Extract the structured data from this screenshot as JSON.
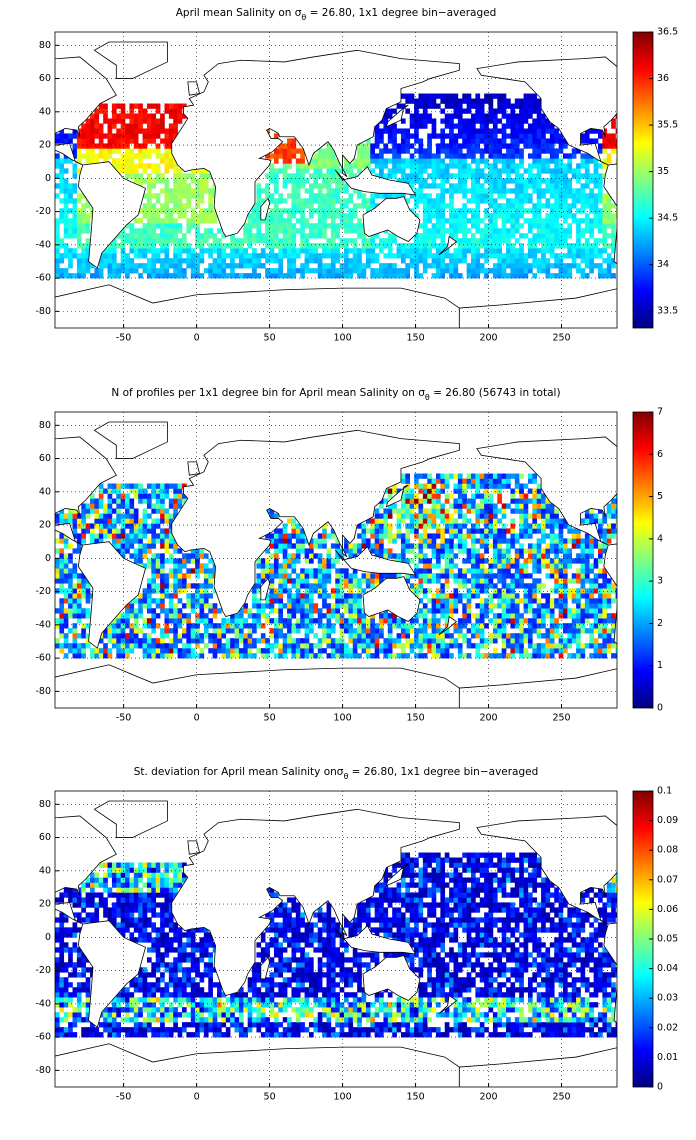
{
  "chart_data": [
    {
      "type": "map",
      "title": [
        "April mean Salinity on σ",
        "θ",
        " = 26.80, 1x1 degree bin−averaged"
      ],
      "xlim": [
        -97,
        288
      ],
      "xticks": [
        -50,
        0,
        50,
        100,
        150,
        200,
        250
      ],
      "ylim": [
        -90,
        88
      ],
      "yticks": [
        -80,
        -60,
        -40,
        -20,
        0,
        20,
        40,
        60,
        80
      ],
      "grid": true,
      "colormap": "jet",
      "clim": [
        33.32,
        36.5
      ],
      "cticks": [
        33.5,
        34,
        34.5,
        35,
        35.5,
        36,
        36.5
      ]
    },
    {
      "type": "map",
      "title": [
        "N of profiles per 1x1 degree bin for April mean Salinity on σ",
        "θ",
        " = 26.80 (56743 in total)"
      ],
      "xlim": [
        -97,
        288
      ],
      "xticks": [
        -50,
        0,
        50,
        100,
        150,
        200,
        250
      ],
      "ylim": [
        -90,
        88
      ],
      "yticks": [
        -80,
        -60,
        -40,
        -20,
        0,
        20,
        40,
        60,
        80
      ],
      "grid": true,
      "colormap": "jet",
      "clim": [
        0,
        7
      ],
      "cticks": [
        0,
        1,
        2,
        3,
        4,
        5,
        6,
        7
      ]
    },
    {
      "type": "map",
      "title": [
        "St. deviation for April mean Salinity onσ",
        "θ",
        " = 26.80, 1x1 degree bin−averaged"
      ],
      "xlim": [
        -97,
        288
      ],
      "xticks": [
        -50,
        0,
        50,
        100,
        150,
        200,
        250
      ],
      "ylim": [
        -90,
        88
      ],
      "yticks": [
        -80,
        -60,
        -40,
        -20,
        0,
        20,
        40,
        60,
        80
      ],
      "grid": true,
      "colormap": "jet",
      "clim": [
        0,
        0.1
      ],
      "cticks": [
        0,
        0.01,
        0.02,
        0.03,
        0.04,
        0.05,
        0.06,
        0.07,
        0.08,
        0.09,
        0.1
      ]
    }
  ]
}
